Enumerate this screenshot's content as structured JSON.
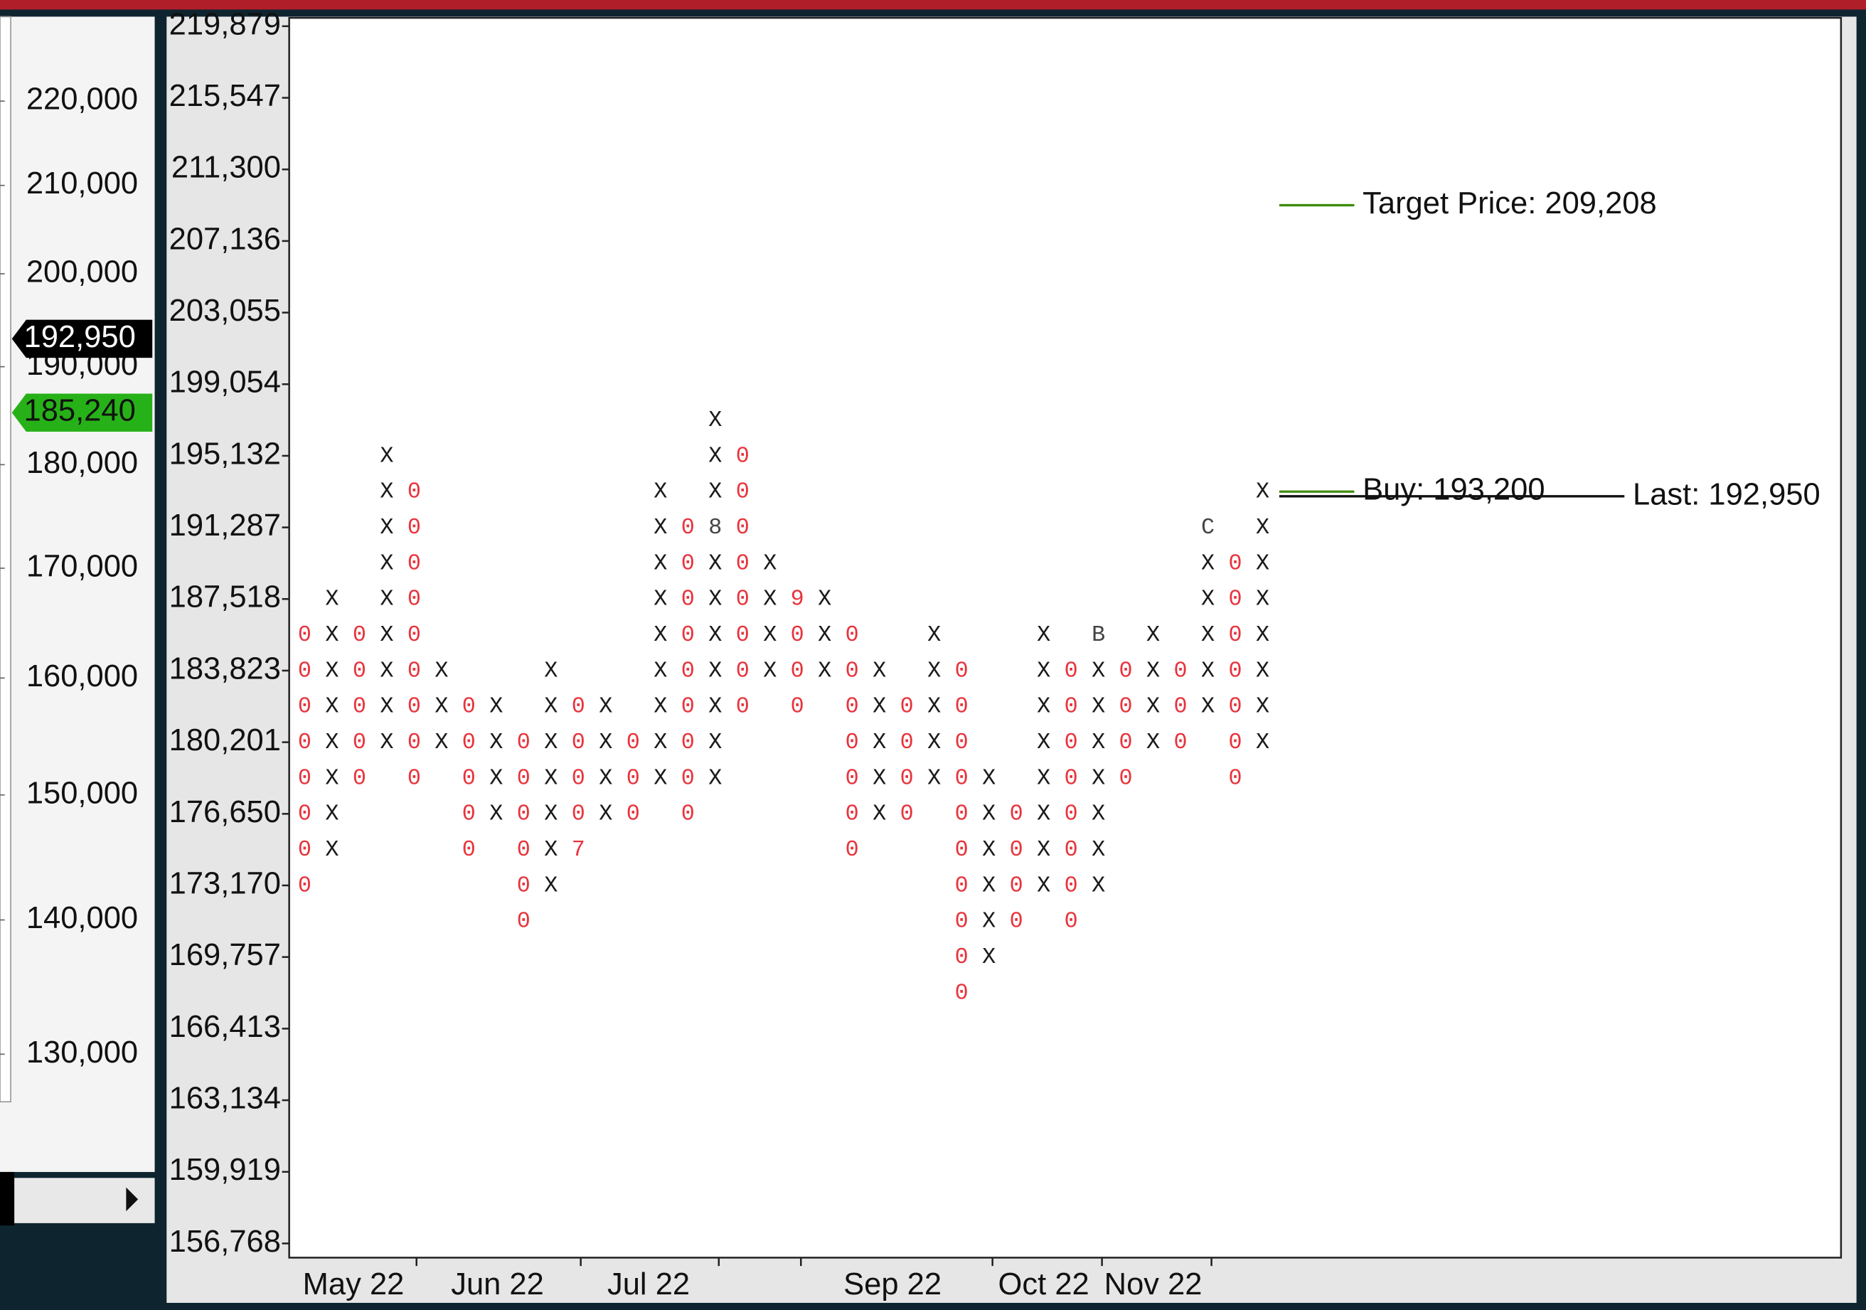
{
  "chart_data": {
    "type": "point_and_figure",
    "ylim": [
      156150,
      220390
    ],
    "log_scale": true,
    "yticks": [
      {
        "value": 219879,
        "label": "219,879"
      },
      {
        "value": 215547,
        "label": "215,547"
      },
      {
        "value": 211300,
        "label": "211,300"
      },
      {
        "value": 207136,
        "label": "207,136"
      },
      {
        "value": 203055,
        "label": "203,055"
      },
      {
        "value": 199054,
        "label": "199,054"
      },
      {
        "value": 195132,
        "label": "195,132"
      },
      {
        "value": 191287,
        "label": "191,287"
      },
      {
        "value": 187518,
        "label": "187,518"
      },
      {
        "value": 183823,
        "label": "183,823"
      },
      {
        "value": 180201,
        "label": "180,201"
      },
      {
        "value": 176650,
        "label": "176,650"
      },
      {
        "value": 173170,
        "label": "173,170"
      },
      {
        "value": 169757,
        "label": "169,757"
      },
      {
        "value": 166413,
        "label": "166,413"
      },
      {
        "value": 163134,
        "label": "163,134"
      },
      {
        "value": 159919,
        "label": "159,919"
      },
      {
        "value": 156768,
        "label": "156,768"
      }
    ],
    "x_labels": [
      "May 22",
      "Jun 22",
      "Jul 22",
      "Sep 22",
      "Oct 22",
      "Nov 22"
    ],
    "x_colors": {
      "X": "#1a1a1a",
      "0": "#e8333c"
    },
    "columns": [
      {
        "symbol": "0",
        "top": 185662,
        "bottom": 173170
      },
      {
        "symbol": "X",
        "top": 187518,
        "bottom": 174901
      },
      {
        "symbol": "0",
        "top": 185662,
        "bottom": 178417
      },
      {
        "symbol": "X",
        "top": 195132,
        "bottom": 180201
      },
      {
        "symbol": "0",
        "top": 193200,
        "bottom": 178417
      },
      {
        "symbol": "X",
        "top": 183823,
        "bottom": 180201
      },
      {
        "symbol": "0",
        "top": 182003,
        "bottom": 174901
      },
      {
        "symbol": "X",
        "top": 182003,
        "bottom": 176650
      },
      {
        "symbol": "0",
        "top": 180201,
        "bottom": 171455
      },
      {
        "symbol": "X",
        "top": 183823,
        "bottom": 173170
      },
      {
        "symbol": "0",
        "top": 182003,
        "bottom": 174901,
        "markers": [
          {
            "label": "7",
            "value": 174901,
            "color": "#e8333c"
          }
        ]
      },
      {
        "symbol": "X",
        "top": 182003,
        "bottom": 176650
      },
      {
        "symbol": "0",
        "top": 180201,
        "bottom": 176650
      },
      {
        "symbol": "X",
        "top": 193200,
        "bottom": 178417
      },
      {
        "symbol": "0",
        "top": 191287,
        "bottom": 176650
      },
      {
        "symbol": "X",
        "top": 197083,
        "bottom": 178417,
        "markers": [
          {
            "label": "8",
            "value": 191287,
            "color": "#444444"
          }
        ]
      },
      {
        "symbol": "0",
        "top": 195132,
        "bottom": 182003
      },
      {
        "symbol": "X",
        "top": 189393,
        "bottom": 183823
      },
      {
        "symbol": "0",
        "top": 187518,
        "bottom": 182003,
        "markers": [
          {
            "label": "9",
            "value": 187518,
            "color": "#e8333c"
          }
        ]
      },
      {
        "symbol": "X",
        "top": 187518,
        "bottom": 183823
      },
      {
        "symbol": "0",
        "top": 185662,
        "bottom": 174901
      },
      {
        "symbol": "X",
        "top": 183823,
        "bottom": 176650
      },
      {
        "symbol": "0",
        "top": 182003,
        "bottom": 176650
      },
      {
        "symbol": "X",
        "top": 185662,
        "bottom": 178417
      },
      {
        "symbol": "0",
        "top": 183823,
        "bottom": 168077
      },
      {
        "symbol": "X",
        "top": 178417,
        "bottom": 169757
      },
      {
        "symbol": "0",
        "top": 176650,
        "bottom": 171455
      },
      {
        "symbol": "X",
        "top": 185662,
        "bottom": 173170
      },
      {
        "symbol": "0",
        "top": 183823,
        "bottom": 171455
      },
      {
        "symbol": "X",
        "top": 185662,
        "bottom": 173170,
        "markers": [
          {
            "label": "B",
            "value": 185662,
            "color": "#444444"
          }
        ]
      },
      {
        "symbol": "0",
        "top": 183823,
        "bottom": 178417
      },
      {
        "symbol": "X",
        "top": 185662,
        "bottom": 180201
      },
      {
        "symbol": "0",
        "top": 183823,
        "bottom": 180201
      },
      {
        "symbol": "X",
        "top": 191287,
        "bottom": 182003,
        "markers": [
          {
            "label": "C",
            "value": 191287,
            "color": "#444444"
          }
        ]
      },
      {
        "symbol": "0",
        "top": 189393,
        "bottom": 178417
      },
      {
        "symbol": "X",
        "top": 193200,
        "bottom": 180201
      }
    ],
    "annotations": [
      {
        "label": "Target Price: 209,208",
        "value": 209208,
        "color": "#3f8c0a"
      },
      {
        "label": "Buy: 193,200",
        "value": 193200,
        "color": "#3f8c0a"
      },
      {
        "label": "Last: 192,950",
        "value": 192950,
        "color": "#111111"
      }
    ],
    "left_axis": {
      "ylim": [
        126700,
        230300
      ],
      "yticks": [
        {
          "value": 220000,
          "label": "220,000"
        },
        {
          "value": 210000,
          "label": "210,000"
        },
        {
          "value": 200000,
          "label": "200,000"
        },
        {
          "value": 190000,
          "label": "190,000"
        },
        {
          "value": 180000,
          "label": "180,000"
        },
        {
          "value": 170000,
          "label": "170,000"
        },
        {
          "value": 160000,
          "label": "160,000"
        },
        {
          "value": 150000,
          "label": "150,000"
        },
        {
          "value": 140000,
          "label": "140,000"
        },
        {
          "value": 130000,
          "label": "130,000"
        }
      ],
      "tags": [
        {
          "label": "192,950",
          "value": 192950,
          "color": "#000000"
        },
        {
          "label": "185,240",
          "value": 185240,
          "color": "#27b118"
        }
      ]
    }
  }
}
